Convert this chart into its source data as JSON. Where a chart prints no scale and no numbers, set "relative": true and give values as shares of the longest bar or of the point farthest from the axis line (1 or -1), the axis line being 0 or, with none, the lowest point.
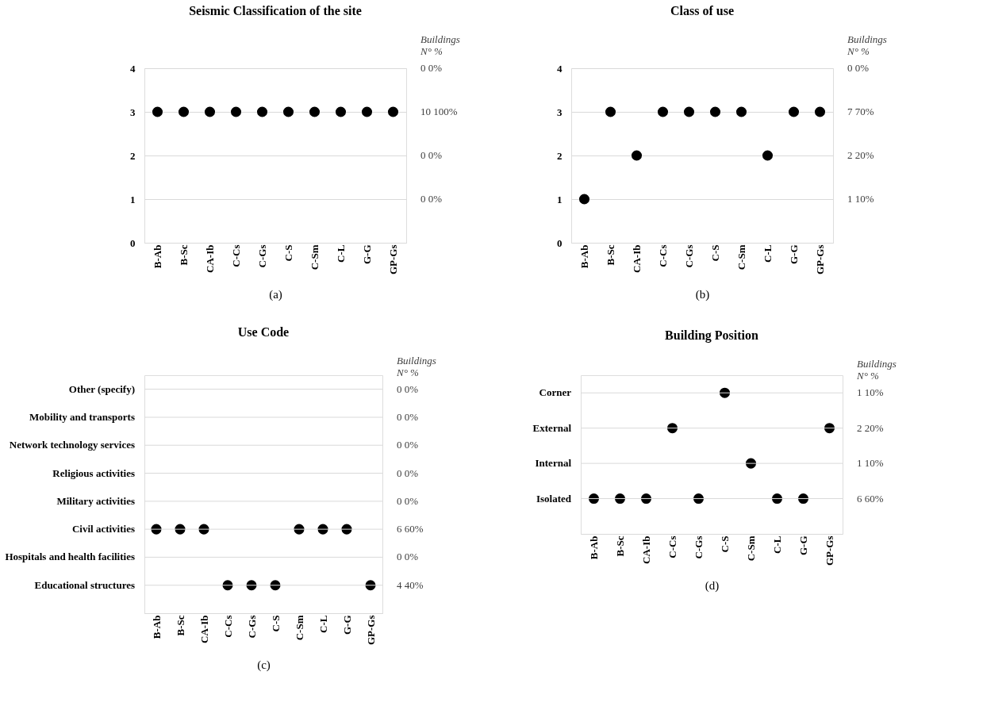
{
  "chart_data": [
    {
      "type": "scatter",
      "title": "Seismic Classification of the site",
      "xlabel": "(a)",
      "categories": [
        "B-Ab",
        "B-Sc",
        "CA-Ib",
        "C-Cs",
        "C-Gs",
        "C-S",
        "C-Sm",
        "C-L",
        "G-G",
        "GP-Gs"
      ],
      "values": [
        3,
        3,
        3,
        3,
        3,
        3,
        3,
        3,
        3,
        3
      ],
      "ylim": [
        0,
        4
      ],
      "yticks": [
        0,
        1,
        2,
        3,
        4
      ],
      "grid": "y",
      "color": "#000000",
      "marker": "circle",
      "annotations": [
        "Buildings",
        "N°  %",
        "0   0%",
        "10  100%",
        "0   0%",
        "0   0%"
      ]
    },
    {
      "type": "scatter",
      "title": "Class of use",
      "xlabel": "(b)",
      "categories": [
        "B-Ab",
        "B-Sc",
        "CA-Ib",
        "C-Cs",
        "C-Gs",
        "C-S",
        "C-Sm",
        "C-L",
        "G-G",
        "GP-Gs"
      ],
      "values": [
        1,
        3,
        2,
        3,
        3,
        3,
        3,
        2,
        3,
        3
      ],
      "ylim": [
        0,
        4
      ],
      "yticks": [
        0,
        1,
        2,
        3,
        4
      ],
      "grid": "y",
      "color": "#000000",
      "marker": "circle",
      "annotations": [
        "Buildings",
        "N°  %",
        "0   0%",
        "7   70%",
        "2   20%",
        "1   10%"
      ]
    },
    {
      "type": "scatter",
      "relative": true,
      "title": "Use Code",
      "xlabel": "(c)",
      "categories": [
        "B-Ab",
        "B-Sc",
        "CA-Ib",
        "C-Cs",
        "C-Gs",
        "C-S",
        "C-Sm",
        "C-L",
        "G-G",
        "GP-Gs"
      ],
      "values": [
        1,
        1,
        1,
        0.333,
        0.333,
        0.333,
        1,
        1,
        1,
        0.333
      ],
      "color": "#000000",
      "marker": "circle",
      "ref_lines": [
        {
          "axis": "y",
          "value": 2.667,
          "label": "Other (specify)",
          "color": "#d9d9d9"
        },
        {
          "axis": "y",
          "value": 2.333,
          "label": "Mobility and transports",
          "color": "#d9d9d9"
        },
        {
          "axis": "y",
          "value": 2,
          "label": "Network technology services",
          "color": "#d9d9d9"
        },
        {
          "axis": "y",
          "value": 1.667,
          "label": "Religious activities",
          "color": "#d9d9d9"
        },
        {
          "axis": "y",
          "value": 1.333,
          "label": "Military activities",
          "color": "#d9d9d9"
        },
        {
          "axis": "y",
          "value": 1,
          "label": "Civil activities",
          "color": "#d9d9d9"
        },
        {
          "axis": "y",
          "value": 0.667,
          "label": "Hospitals and health facilities",
          "color": "#d9d9d9"
        },
        {
          "axis": "y",
          "value": 0.333,
          "label": "Educational structures",
          "color": "#d9d9d9"
        }
      ],
      "annotations": [
        "Buildings",
        "N°  %",
        "0   0%",
        "0   0%",
        "0   0%",
        "0   0%",
        "0   0%",
        "6   60%",
        "0   0%",
        "4   40%"
      ]
    },
    {
      "type": "scatter",
      "relative": true,
      "title": "Building Position",
      "xlabel": "(d)",
      "categories": [
        "B-Ab",
        "B-Sc",
        "CA-Ib",
        "C-Cs",
        "C-Gs",
        "C-S",
        "C-Sm",
        "C-L",
        "G-G",
        "GP-Gs"
      ],
      "values": [
        0.25,
        0.25,
        0.25,
        0.75,
        0.25,
        1,
        0.5,
        0.25,
        0.25,
        0.75
      ],
      "color": "#000000",
      "marker": "circle",
      "ref_lines": [
        {
          "axis": "y",
          "value": 1,
          "label": "Corner",
          "color": "#d9d9d9"
        },
        {
          "axis": "y",
          "value": 0.75,
          "label": "External",
          "color": "#d9d9d9"
        },
        {
          "axis": "y",
          "value": 0.5,
          "label": "Internal",
          "color": "#d9d9d9"
        },
        {
          "axis": "y",
          "value": 0.25,
          "label": "Isolated",
          "color": "#d9d9d9"
        }
      ],
      "annotations": [
        "Buildings",
        "N°  %",
        "1   10%",
        "2   20%",
        "1   10%",
        "6   60%"
      ]
    }
  ]
}
